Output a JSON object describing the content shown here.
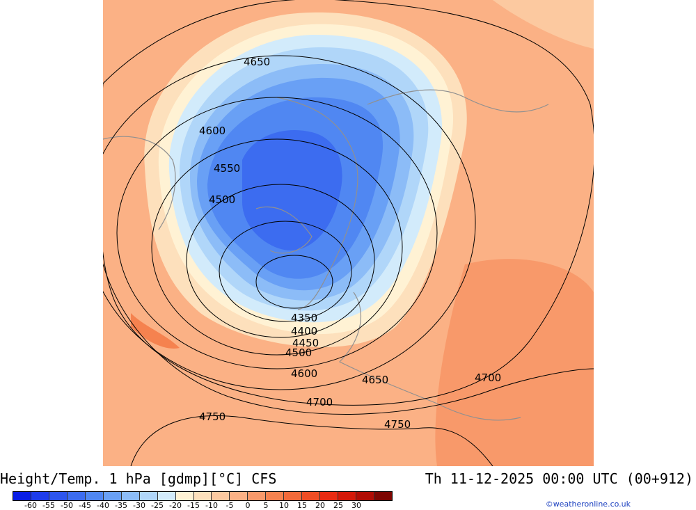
{
  "title": {
    "left": "Height/Temp. 1 hPa [gdmp][°C] CFS",
    "right": "Th 11-12-2025 00:00 UTC (00+912)"
  },
  "credit": "©weatheronline.co.uk",
  "colorbar": {
    "colors": [
      "#0a1ee6",
      "#1e3ceb",
      "#2d55ee",
      "#3c6cf0",
      "#5087f2",
      "#69a0f5",
      "#8cbcf7",
      "#b0d6f9",
      "#d2ebfb",
      "#fff2d4",
      "#fde0bc",
      "#fcc9a0",
      "#fbb185",
      "#f8996a",
      "#f5824f",
      "#f26a3a",
      "#ef4d24",
      "#ea2b12",
      "#d41808",
      "#b00c04",
      "#7d0602"
    ],
    "tick_labels": [
      "-60",
      "-55",
      "-50",
      "-45",
      "-40",
      "-35",
      "-30",
      "-25",
      "-20",
      "-15",
      "-10",
      "-5",
      "0",
      "5",
      "10",
      "15",
      "20",
      "25",
      "30"
    ]
  },
  "contour_labels": [
    "4650",
    "4600",
    "4550",
    "4500",
    "4350",
    "4400",
    "4450",
    "4500",
    "4600",
    "4650",
    "4700",
    "4700",
    "4750",
    "4750"
  ]
}
